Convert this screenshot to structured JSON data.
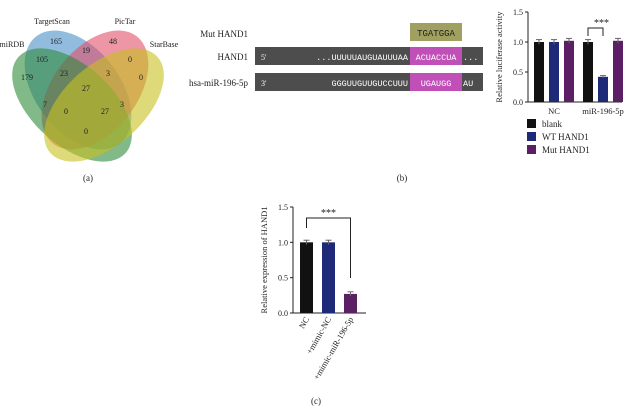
{
  "panel_labels": {
    "a": "(a)",
    "b": "(b)",
    "c": "(c)"
  },
  "venn": {
    "sets": [
      {
        "name": "TargetScan",
        "color": "#4a90c8"
      },
      {
        "name": "PicTar",
        "color": "#e0506a"
      },
      {
        "name": "miRDB",
        "color": "#2e8b3a"
      },
      {
        "name": "StarBase",
        "color": "#c8c020"
      }
    ],
    "counts": [
      "165",
      "48",
      "179",
      "0",
      "19",
      "105",
      "23",
      "27",
      "3",
      "0",
      "7",
      "0",
      "27",
      "3",
      "0"
    ]
  },
  "alignment": {
    "rows": [
      {
        "label": "Mut HAND1",
        "prime5": "",
        "seq_left": "",
        "highlight": "TGATGGA",
        "seq_right": "",
        "prime3": ""
      },
      {
        "label": "HAND1",
        "prime5": "5'",
        "seq_left": "...UUUUUAUGUAUUUAA",
        "highlight": "ACUACCUA",
        "seq_right": "...",
        "prime3": ""
      },
      {
        "label": "hsa-miR-196-5p",
        "prime5": "3'",
        "seq_left": "GGGUUGUUGUCCUUU",
        "highlight": "UGAUGG",
        "seq_right": "AU",
        "prime3": ""
      }
    ]
  },
  "chart_data": [
    {
      "type": "bar",
      "panel": "b",
      "ylabel": "Relative luciferase activity",
      "ylim": [
        0,
        1.5
      ],
      "yticks": [
        "0.0",
        "0.5",
        "1.0",
        "1.5"
      ],
      "categories": [
        "NC",
        "miR-196-5p"
      ],
      "series": [
        {
          "name": "blank",
          "color": "#111111",
          "values": [
            1.0,
            1.0
          ],
          "errors": [
            0.04,
            0.04
          ]
        },
        {
          "name": "WT HAND1",
          "color": "#1e2a78",
          "values": [
            1.0,
            0.42
          ],
          "errors": [
            0.04,
            0.02
          ]
        },
        {
          "name": "Mut HAND1",
          "color": "#5c1f66",
          "values": [
            1.02,
            1.02
          ],
          "errors": [
            0.04,
            0.04
          ]
        }
      ],
      "significance": "***",
      "legend_position": "bottom"
    },
    {
      "type": "bar",
      "panel": "c",
      "ylabel": "Relative expression of HAND1",
      "ylim": [
        0,
        1.5
      ],
      "yticks": [
        "0.0",
        "0.5",
        "1.0",
        "1.5"
      ],
      "categories": [
        "NC",
        "+mimic-NC",
        "+mimic-miR-196-5p"
      ],
      "values": [
        1.0,
        1.0,
        0.27
      ],
      "errors": [
        0.03,
        0.03,
        0.03
      ],
      "colors": [
        "#111111",
        "#1e2a78",
        "#5c1f66"
      ],
      "significance": "***"
    }
  ]
}
